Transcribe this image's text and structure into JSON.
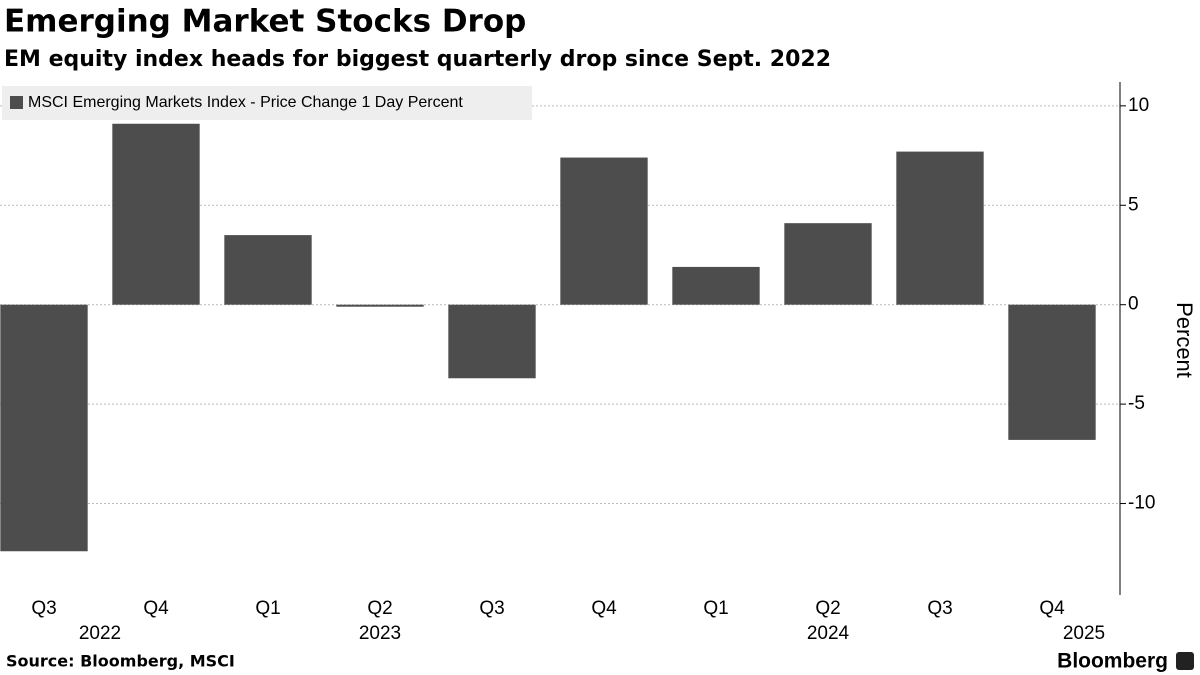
{
  "chart_data": {
    "type": "bar",
    "title": "Emerging Market Stocks Drop",
    "subtitle": "EM equity index heads for biggest quarterly drop since Sept. 2022",
    "categories": [
      "Q3",
      "Q4",
      "Q1",
      "Q2",
      "Q3",
      "Q4",
      "Q1",
      "Q2",
      "Q3",
      "Q4"
    ],
    "years": [
      "2022",
      null,
      null,
      "2023",
      null,
      null,
      null,
      "2024",
      null,
      "2025"
    ],
    "series": [
      {
        "name": "MSCI Emerging Markets Index - Price Change 1 Day Percent",
        "color": "#4d4d4d",
        "values": [
          -12.4,
          9.1,
          3.5,
          -0.1,
          -3.7,
          7.4,
          1.9,
          4.1,
          7.7,
          -6.8
        ]
      }
    ],
    "ylabel": "Percent",
    "ylim": [
      -14.6,
      11.2
    ],
    "yticks": [
      10,
      5,
      0,
      -5,
      -10
    ],
    "grid": true,
    "source": "Source: Bloomberg, MSCI",
    "brand": "Bloomberg"
  }
}
